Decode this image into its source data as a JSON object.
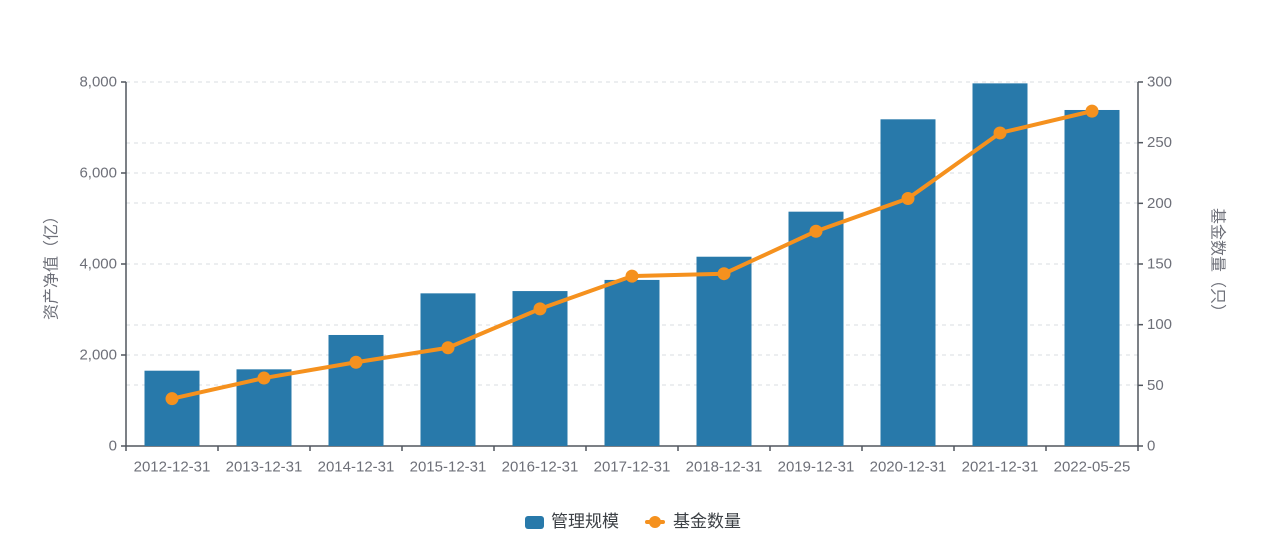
{
  "chart_data": {
    "type": "combo",
    "title": "",
    "categories": [
      "2012-12-31",
      "2013-12-31",
      "2014-12-31",
      "2015-12-31",
      "2016-12-31",
      "2017-12-31",
      "2018-12-31",
      "2019-12-31",
      "2020-12-31",
      "2021-12-31",
      "2022-05-25"
    ],
    "series": [
      {
        "name": "管理规模",
        "type": "bar",
        "y_axis": "left",
        "values": [
          1655,
          1685,
          2440,
          3355,
          3405,
          3650,
          4160,
          5150,
          7180,
          7970,
          7385
        ]
      },
      {
        "name": "基金数量",
        "type": "line",
        "y_axis": "right",
        "values": [
          39,
          56,
          69,
          81,
          113,
          140,
          142,
          177,
          204,
          258,
          276
        ]
      }
    ],
    "left_axis": {
      "title": "资产净值（亿）",
      "min": 0,
      "max": 8000,
      "interval": 2000,
      "tick_labels": [
        "0",
        "2,000",
        "4,000",
        "6,000",
        "8,000"
      ]
    },
    "right_axis": {
      "title": "基金数量（只）",
      "min": 0,
      "max": 300,
      "interval": 50,
      "tick_labels": [
        "0",
        "50",
        "100",
        "150",
        "200",
        "250",
        "300"
      ]
    },
    "x_axis": {
      "label_rotation": 0
    },
    "grid": {
      "horizontal_gridlines": true,
      "style": "dashed",
      "sources": [
        "left_axis",
        "right_axis"
      ]
    },
    "legend": {
      "position": "bottom",
      "items": [
        "管理规模",
        "基金数量"
      ]
    }
  },
  "styles": {
    "bar_color": "#2879AA",
    "line_color": "#F5911E",
    "axis_line_color": "#51565E",
    "tick_label_color": "#6E7079",
    "axis_title_color": "#6E7079",
    "grid_color": "#D9DCE1",
    "legend_text_color": "#3C4045",
    "background": "#FFFFFF"
  }
}
